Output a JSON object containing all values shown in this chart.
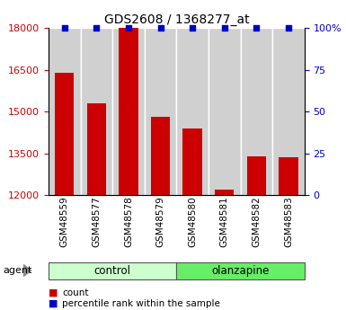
{
  "title": "GDS2608 / 1368277_at",
  "categories": [
    "GSM48559",
    "GSM48577",
    "GSM48578",
    "GSM48579",
    "GSM48580",
    "GSM48581",
    "GSM48582",
    "GSM48583"
  ],
  "bar_values": [
    16400,
    15300,
    18000,
    14800,
    14400,
    12200,
    13400,
    13350
  ],
  "percentile_values": [
    100,
    100,
    100,
    100,
    100,
    100,
    100,
    100
  ],
  "bar_color": "#cc0000",
  "dot_color": "#0000cc",
  "ylim_left": [
    12000,
    18000
  ],
  "ylim_right": [
    0,
    100
  ],
  "yticks_left": [
    12000,
    13500,
    15000,
    16500,
    18000
  ],
  "ytick_labels_right": [
    "0",
    "25",
    "50",
    "75",
    "100%"
  ],
  "yticks_right": [
    0,
    25,
    50,
    75,
    100
  ],
  "groups": [
    {
      "label": "control",
      "indices": [
        0,
        1,
        2,
        3
      ],
      "color": "#ccffcc"
    },
    {
      "label": "olanzapine",
      "indices": [
        4,
        5,
        6,
        7
      ],
      "color": "#66ee66"
    }
  ],
  "agent_label": "agent",
  "legend_count_label": "count",
  "legend_pct_label": "percentile rank within the sample",
  "background_color": "#ffffff",
  "tick_label_color_left": "#cc0000",
  "tick_label_color_right": "#0000cc",
  "bar_width": 0.6
}
